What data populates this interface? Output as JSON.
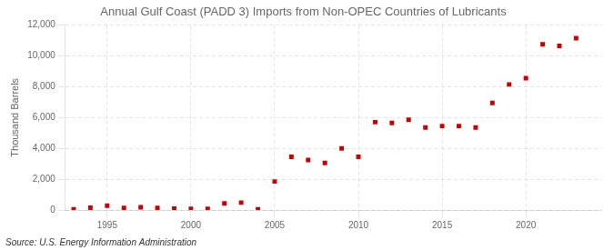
{
  "chart_data": {
    "type": "scatter",
    "title": "Annual Gulf Coast (PADD 3) Imports from Non-OPEC Countries of Lubricants",
    "y_label": "Thousand Barrels",
    "annotations": [
      "Source: U.S. Energy Information Administration"
    ],
    "x": [
      1993,
      1994,
      1995,
      1996,
      1997,
      1998,
      1999,
      2000,
      2001,
      2002,
      2003,
      2004,
      2005,
      2006,
      2007,
      2008,
      2009,
      2010,
      2011,
      2012,
      2013,
      2014,
      2015,
      2016,
      2017,
      2018,
      2019,
      2020,
      2021,
      2022,
      2023
    ],
    "values": [
      50,
      150,
      280,
      140,
      180,
      130,
      90,
      80,
      80,
      430,
      480,
      40,
      1850,
      3450,
      3250,
      3050,
      4000,
      3450,
      5700,
      5650,
      5850,
      5350,
      5450,
      5450,
      5350,
      6950,
      8150,
      8550,
      10750,
      10650,
      11150
    ],
    "color": "#cc0000",
    "marker": "square",
    "xlim": [
      1992.5,
      2024.5
    ],
    "xticks": [
      1995,
      2000,
      2005,
      2010,
      2015,
      2020
    ],
    "ylim": [
      0,
      12000
    ],
    "yticks": [
      0,
      {
        "value": 2000,
        "label": "2,000"
      },
      {
        "value": 4000,
        "label": "4,000"
      },
      {
        "value": 6000,
        "label": "6,000"
      },
      {
        "value": 8000,
        "label": "8,000"
      },
      {
        "value": 10000,
        "label": "10,000"
      },
      {
        "value": 12000,
        "label": "12,000"
      }
    ],
    "grid": true
  }
}
